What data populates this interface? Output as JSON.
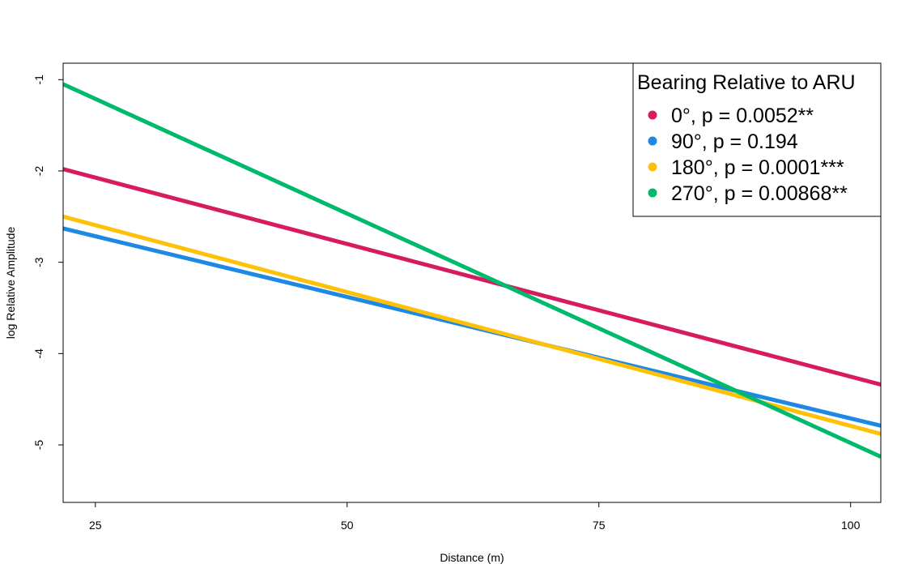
{
  "chart_data": {
    "type": "line",
    "title": "",
    "xlabel": "Distance (m)",
    "ylabel": "log Relative Amplitude",
    "xlim": [
      21.8,
      103.0
    ],
    "ylim": [
      -5.63,
      -0.82
    ],
    "x_ticks": [
      25,
      50,
      75,
      100
    ],
    "x_tick_labels": [
      "25",
      "50",
      "75",
      "100"
    ],
    "y_ticks": [
      -1,
      -2,
      -3,
      -4,
      -5
    ],
    "y_tick_labels": [
      "-1",
      "-2",
      "-3",
      "-4",
      "-5"
    ],
    "grid": false,
    "legend": {
      "title": "Bearing Relative to ARU",
      "position": "top-right"
    },
    "series": [
      {
        "name": "0°, p = 0.0052**",
        "color": "#D81B60",
        "x": [
          21.8,
          103.0
        ],
        "y": [
          -1.98,
          -4.34
        ]
      },
      {
        "name": "90°, p = 0.194",
        "color": "#1E88E5",
        "x": [
          21.8,
          103.0
        ],
        "y": [
          -2.63,
          -4.79
        ]
      },
      {
        "name": "180°, p = 0.0001***",
        "color": "#FFC107",
        "x": [
          21.8,
          103.0
        ],
        "y": [
          -2.5,
          -4.88
        ]
      },
      {
        "name": "270°, p = 0.00868**",
        "color": "#00BA6B",
        "x": [
          21.8,
          103.0
        ],
        "y": [
          -1.05,
          -5.13
        ]
      }
    ]
  }
}
